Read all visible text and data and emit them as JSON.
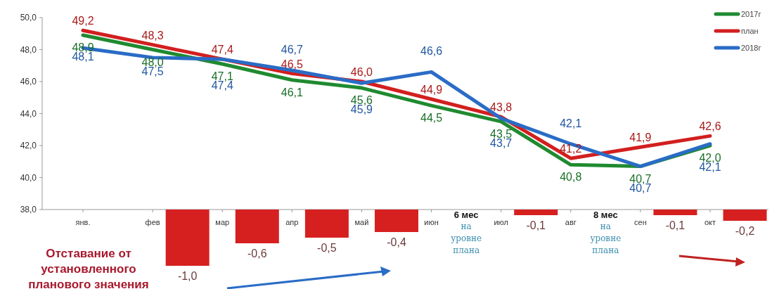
{
  "chart_data": [
    {
      "type": "line",
      "categories": [
        "янв.",
        "фев",
        "мар",
        "апр",
        "май",
        "июн",
        "июл",
        "авг",
        "сен",
        "окт"
      ],
      "series": [
        {
          "name": "2017г",
          "color": "#1f8a30",
          "values": [
            48.9,
            48.0,
            47.1,
            46.1,
            45.6,
            44.5,
            43.5,
            40.8,
            40.7,
            42.0
          ],
          "value_labels": [
            "48,9",
            "48,0",
            "47,1",
            "46,1",
            "45,6",
            "44,5",
            "43,5",
            "40,8",
            "40,7",
            "42,0"
          ]
        },
        {
          "name": "план",
          "color": "#d21f1f",
          "values": [
            49.2,
            48.3,
            47.4,
            46.5,
            46.0,
            44.9,
            43.8,
            41.2,
            41.9,
            42.6
          ],
          "value_labels": [
            "49,2",
            "48,3",
            "47,4",
            "46,5",
            "46,0",
            "44,9",
            "43,8",
            "41,2",
            "41,9",
            "42,6"
          ]
        },
        {
          "name": "2018г",
          "color": "#2a6cc6",
          "values": [
            48.1,
            47.5,
            47.4,
            46.7,
            45.9,
            46.6,
            43.7,
            42.1,
            40.7,
            42.1
          ],
          "value_labels": [
            "48,1",
            "47,5",
            "47,4",
            "46,7",
            "45,9",
            "46,6",
            "43,7",
            "42,1",
            "40,7",
            "42,1"
          ]
        }
      ],
      "ylim": [
        38,
        50
      ],
      "yticks": [
        {
          "value": 38,
          "label": "38,0"
        },
        {
          "value": 40,
          "label": "40,0"
        },
        {
          "value": 42,
          "label": "42,0"
        },
        {
          "value": 44,
          "label": "44,0"
        },
        {
          "value": 46,
          "label": "46,0"
        },
        {
          "value": 48,
          "label": "48,0"
        },
        {
          "value": 50,
          "label": "50,0"
        }
      ],
      "legend": "top right"
    },
    {
      "type": "bar",
      "categories": [
        null,
        null,
        null,
        null,
        null,
        null,
        null,
        null,
        null,
        null
      ],
      "values": [
        null,
        -1.0,
        -0.6,
        -0.5,
        -0.4,
        null,
        -0.1,
        null,
        -0.1,
        -0.2
      ],
      "color": "#d62020",
      "value_labels": [
        null,
        "-1,0",
        "-0,6",
        "-0,5",
        "-0,4",
        null,
        "-0,1",
        null,
        "-0,1",
        "-0,2"
      ],
      "annotations": [
        "6 мес",
        "на уровне плана",
        "8 мес",
        "на уровне плана",
        "Отставание от установленного планового значения"
      ]
    }
  ]
}
